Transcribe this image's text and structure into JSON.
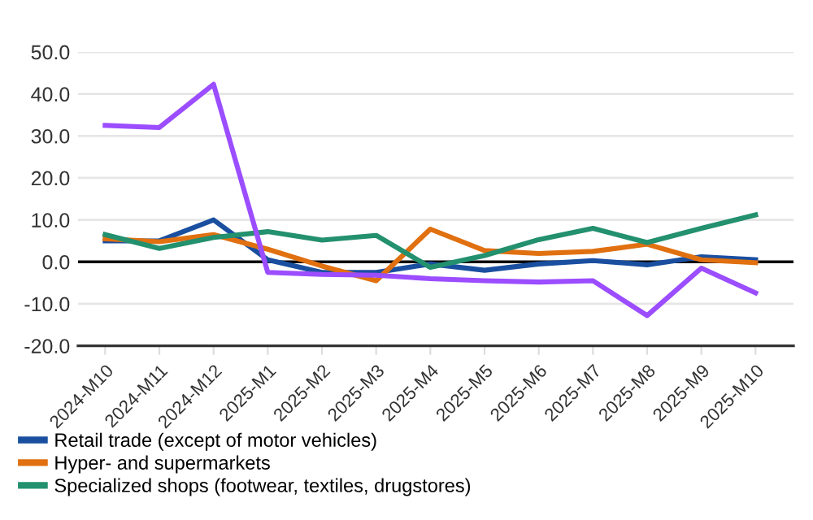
{
  "chart_data": {
    "type": "line",
    "categories": [
      "2024-M10",
      "2024-M11",
      "2024-M12",
      "2025-M1",
      "2025-M2",
      "2025-M3",
      "2025-M4",
      "2025-M5",
      "2025-M6",
      "2025-M7",
      "2025-M8",
      "2025-M9",
      "2025-M10"
    ],
    "series": [
      {
        "name": "Retail trade (except of motor vehicles)",
        "color": "#1a4fa0",
        "values": [
          5,
          5,
          10,
          0.5,
          -2.5,
          -2.5,
          -0.5,
          -2,
          -0.5,
          0.3,
          -0.7,
          1.2,
          0.5
        ]
      },
      {
        "name": "Hyper- and supermarkets",
        "color": "#e07010",
        "values": [
          5.5,
          4.8,
          6.5,
          3,
          -1,
          -4.5,
          7.8,
          2.7,
          2,
          2.5,
          4.2,
          0.5,
          -0.2
        ]
      },
      {
        "name": "Specialized shops (footwear, textiles, drugstores)",
        "color": "#23906e",
        "values": [
          6.5,
          3.2,
          5.8,
          7.2,
          5.2,
          6.3,
          -1.3,
          1.5,
          5.3,
          8,
          4.6,
          8,
          11.2
        ]
      },
      {
        "color": "#9b4dff",
        "values": [
          32.5,
          32,
          42.3,
          -2.5,
          -3,
          -3.2,
          -4,
          -4.5,
          -4.8,
          -4.5,
          -12.8,
          -1.5,
          -7.4
        ]
      }
    ],
    "ylim": [
      -20,
      50
    ],
    "yticks": [
      {
        "value": -20,
        "label": "-20.0"
      },
      {
        "value": -10,
        "label": "-10.0"
      },
      {
        "value": 0,
        "label": "0.0"
      },
      {
        "value": 10,
        "label": "10.0"
      },
      {
        "value": 20,
        "label": "20.0"
      },
      {
        "value": 30,
        "label": "30.0"
      },
      {
        "value": 40,
        "label": "40.0"
      },
      {
        "value": 50,
        "label": "50.0"
      }
    ],
    "ref_lines": [
      {
        "axis": "y",
        "value": 0,
        "color": "#000000"
      }
    ],
    "grid": "y",
    "legend": "bottom",
    "marker": "none",
    "line_style": "solid"
  }
}
